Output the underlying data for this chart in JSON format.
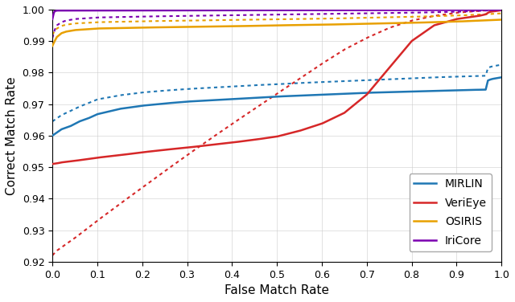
{
  "title": "",
  "xlabel": "False Match Rate",
  "ylabel": "Correct Match Rate",
  "xlim": [
    0,
    1
  ],
  "ylim": [
    0.92,
    1.0
  ],
  "yticks": [
    0.92,
    0.93,
    0.94,
    0.95,
    0.96,
    0.97,
    0.98,
    0.99,
    1.0
  ],
  "xticks": [
    0,
    0.1,
    0.2,
    0.3,
    0.4,
    0.5,
    0.6,
    0.7,
    0.8,
    0.9,
    1.0
  ],
  "colors": {
    "MIRLIN": "#1f77b4",
    "VeriEye": "#d62728",
    "OSIRIS": "#e8a000",
    "IriCore": "#7b00b0"
  },
  "legend_entries": [
    "MIRLIN",
    "VeriEye",
    "OSIRIS",
    "IriCore"
  ],
  "background_color": "#ffffff",
  "grid_color": "#cccccc"
}
